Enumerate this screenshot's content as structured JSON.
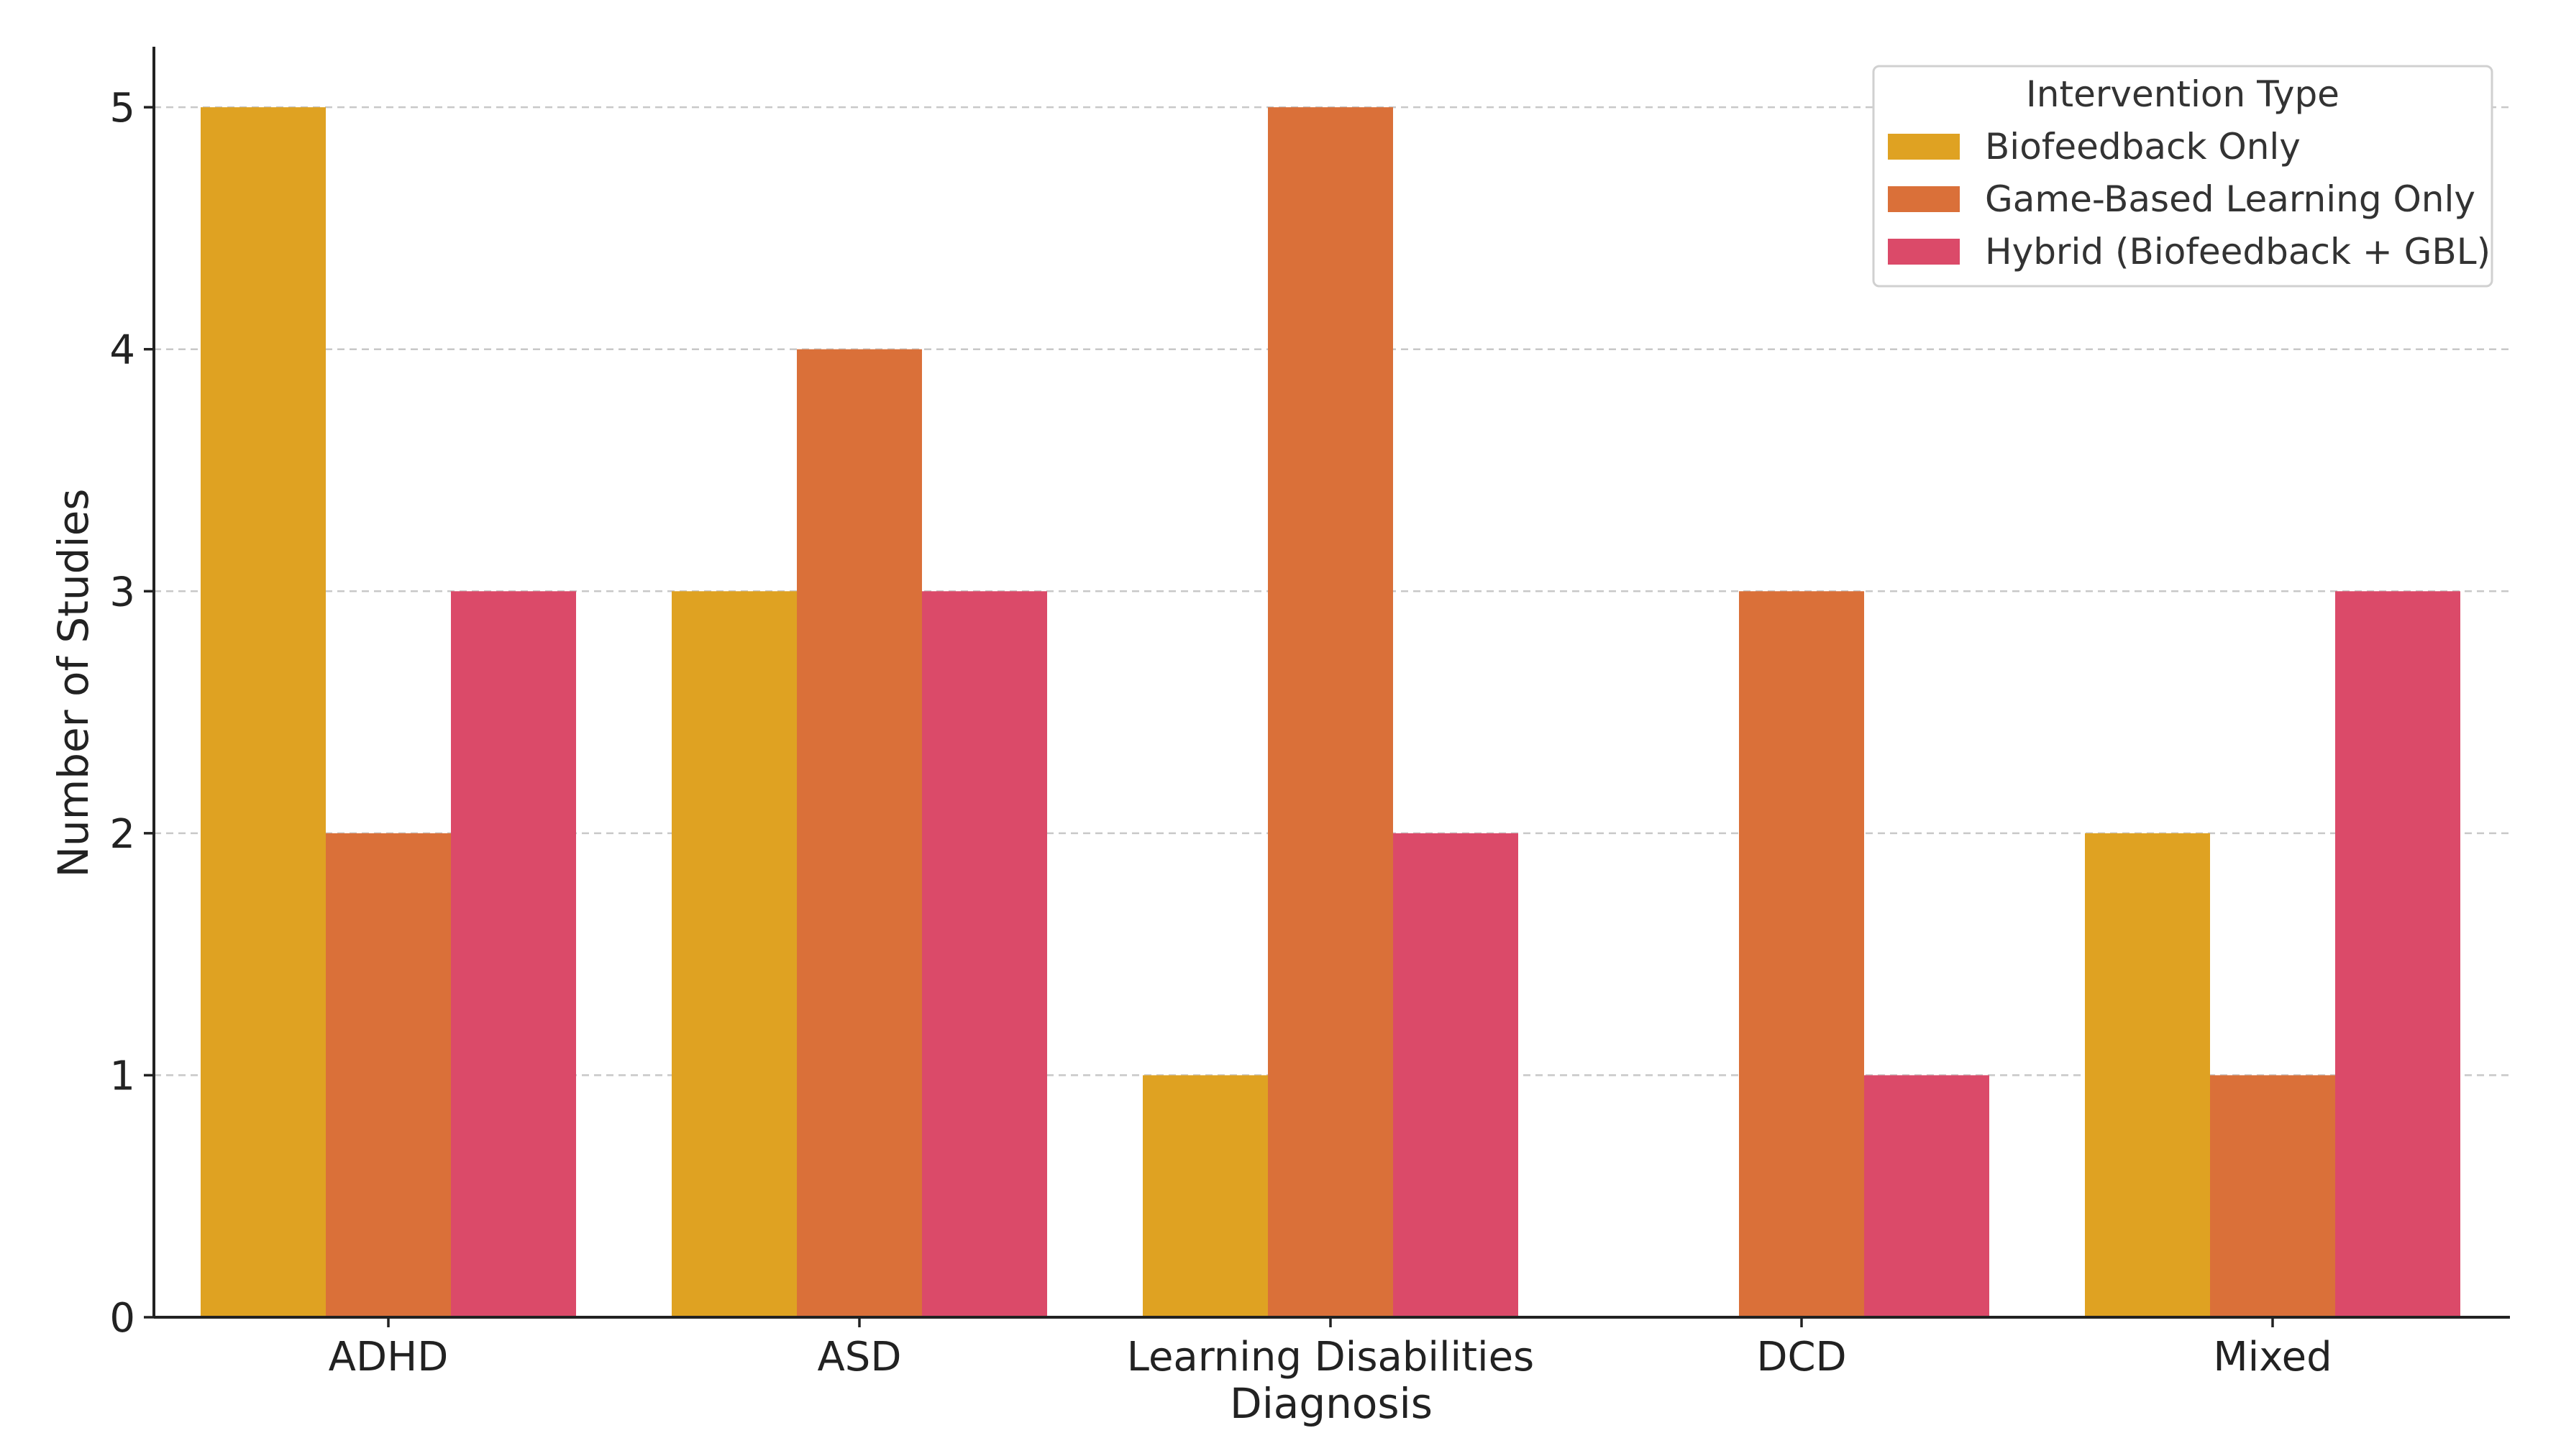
{
  "chart_data": {
    "type": "bar",
    "title": "",
    "xlabel": "Diagnosis",
    "ylabel": "Number of Studies",
    "categories": [
      "ADHD",
      "ASD",
      "Learning Disabilities",
      "DCD",
      "Mixed"
    ],
    "series": [
      {
        "name": "Biofeedback Only",
        "color": "#DFA222",
        "values": [
          5,
          3,
          1,
          0,
          2
        ]
      },
      {
        "name": "Game-Based Learning Only",
        "color": "#DA7039",
        "values": [
          2,
          4,
          5,
          3,
          1
        ]
      },
      {
        "name": "Hybrid (Biofeedback + GBL)",
        "color": "#DB4A69",
        "values": [
          3,
          3,
          2,
          1,
          3
        ]
      }
    ],
    "ylim": [
      0,
      5.25
    ],
    "yticks": [
      0,
      1,
      2,
      3,
      4,
      5
    ],
    "grid": "y-dashed",
    "legend": {
      "title": "Intervention Type",
      "placement": "top-right"
    }
  }
}
